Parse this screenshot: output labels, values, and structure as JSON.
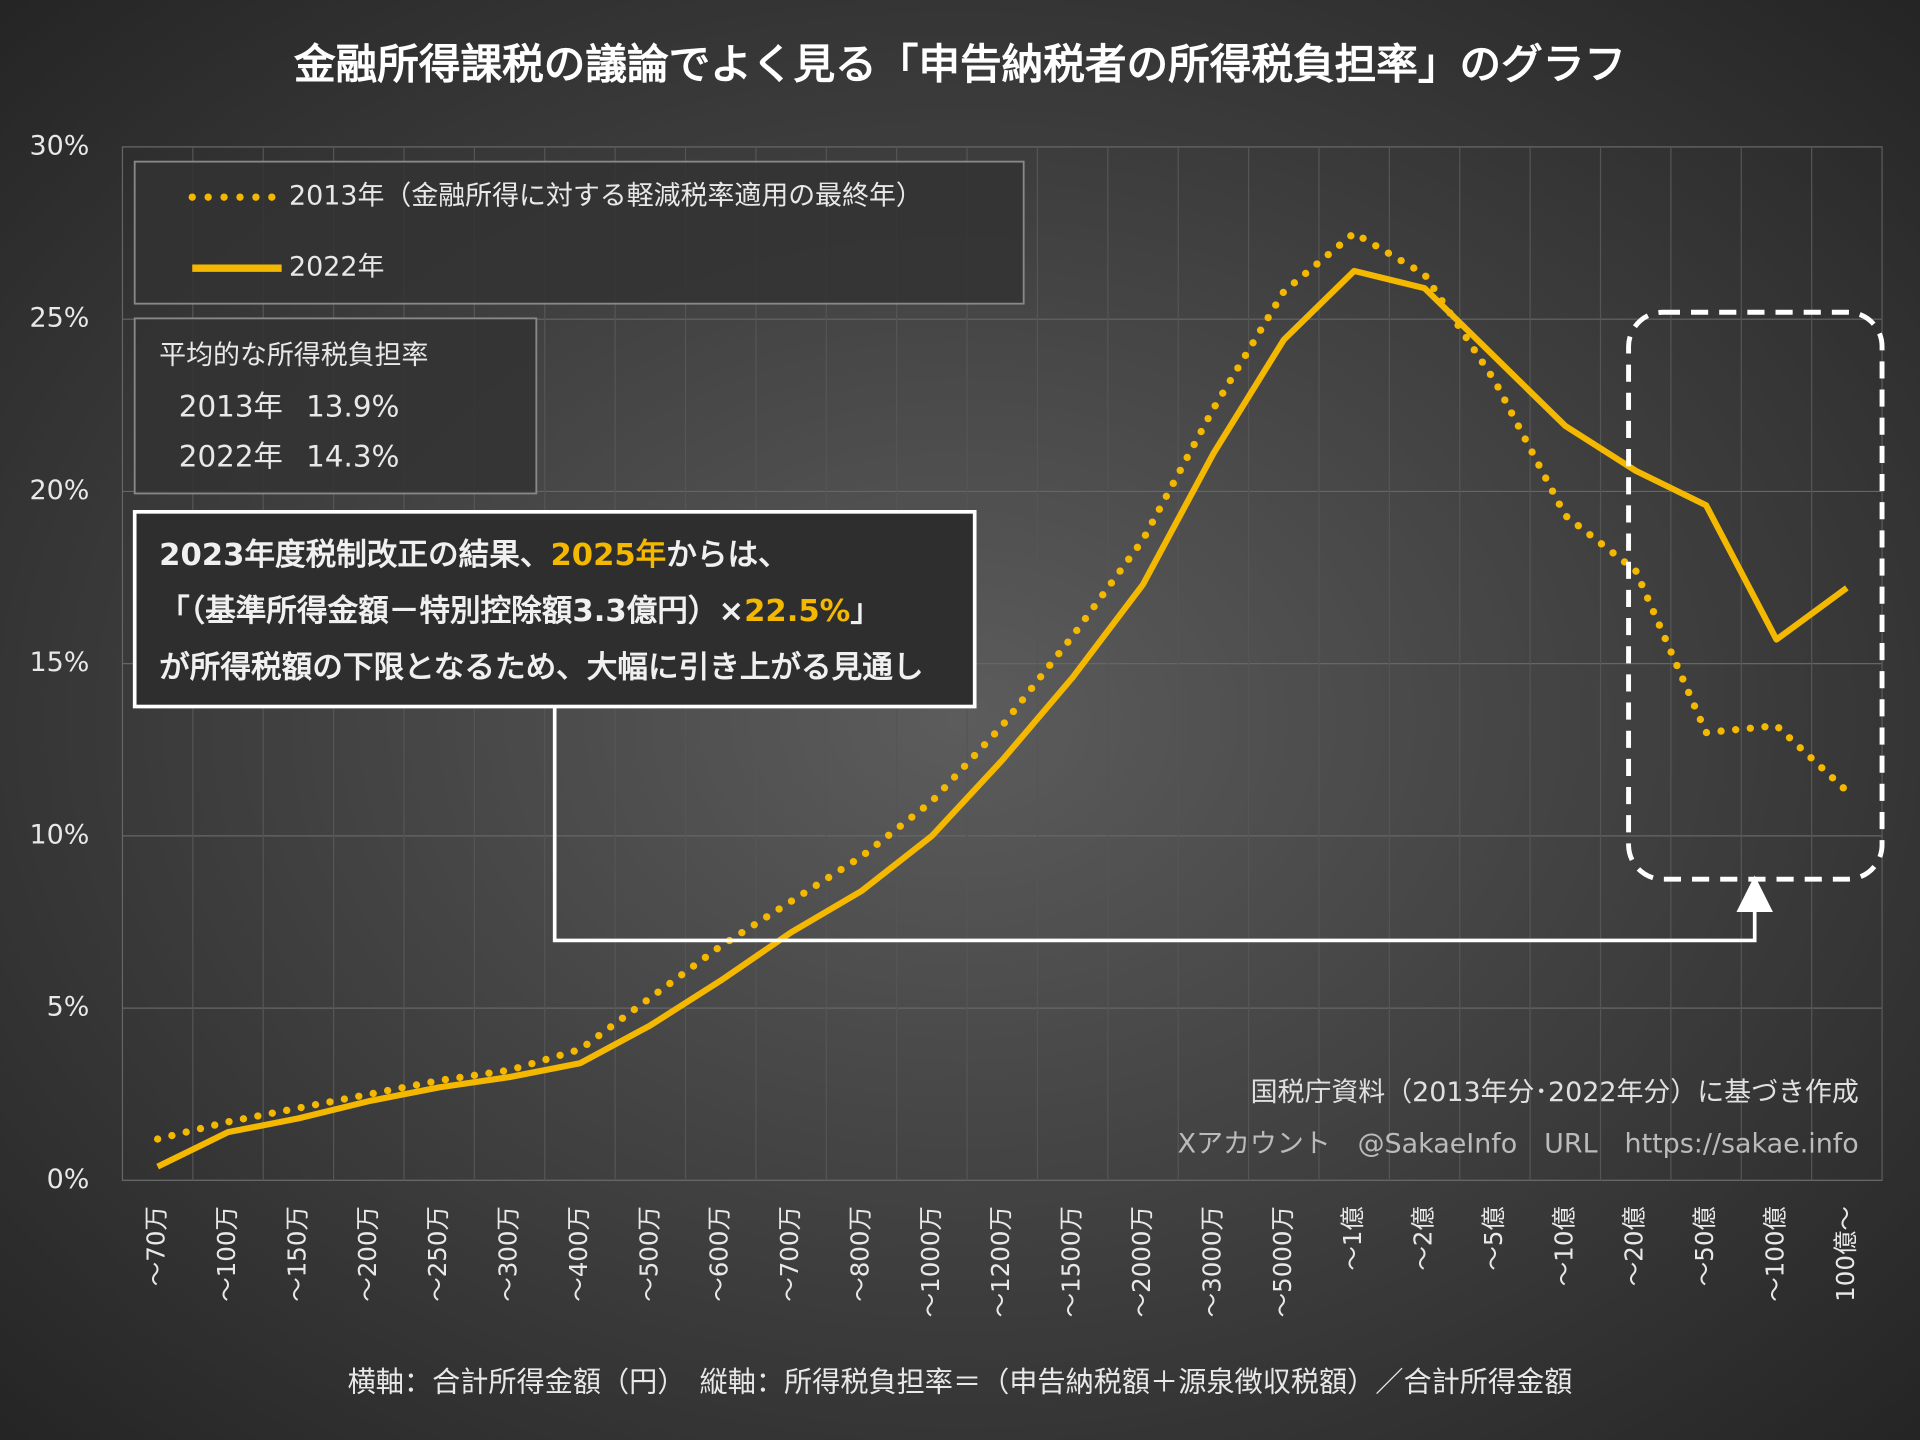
{
  "chart_data": {
    "type": "line",
    "title": "金融所得課税の議論でよく見る「申告納税者の所得税負担率」のグラフ",
    "categories": [
      "～70万",
      "～100万",
      "～150万",
      "～200万",
      "～250万",
      "～300万",
      "～400万",
      "～500万",
      "～600万",
      "～700万",
      "～800万",
      "～1000万",
      "～1200万",
      "～1500万",
      "～2000万",
      "～3000万",
      "～5000万",
      "～1億",
      "～2億",
      "～5億",
      "～10億",
      "～20億",
      "～50億",
      "～100億",
      "100億～"
    ],
    "series": [
      {
        "name": "2013年（金融所得に対する軽減税率適用の最終年）",
        "color": "#f5b800",
        "style": "dotted",
        "values": [
          1.2,
          1.7,
          2.1,
          2.5,
          2.9,
          3.2,
          3.8,
          5.3,
          6.8,
          8.1,
          9.4,
          11.0,
          13.2,
          15.8,
          18.6,
          22.4,
          25.8,
          27.5,
          26.3,
          23.2,
          19.3,
          17.7,
          13.0,
          13.2,
          11.3
        ]
      },
      {
        "name": "2022年",
        "color": "#f5b800",
        "style": "solid",
        "values": [
          0.4,
          1.4,
          1.8,
          2.3,
          2.7,
          3.0,
          3.4,
          4.5,
          5.8,
          7.2,
          8.4,
          10.0,
          12.2,
          14.6,
          17.3,
          21.1,
          24.4,
          26.4,
          25.9,
          23.9,
          21.9,
          20.6,
          19.6,
          15.7,
          17.2
        ]
      }
    ],
    "ylim": [
      0,
      30
    ],
    "yticks": [
      {
        "value": 0,
        "label": "0%"
      },
      {
        "value": 5,
        "label": "5%"
      },
      {
        "value": 10,
        "label": "10%"
      },
      {
        "value": 15,
        "label": "15%"
      },
      {
        "value": 20,
        "label": "20%"
      },
      {
        "value": 25,
        "label": "25%"
      },
      {
        "value": 30,
        "label": "30%"
      }
    ],
    "grid": true,
    "average_box": {
      "title": "平均的な所得税負担率",
      "rows": [
        [
          "2013年",
          "13.9%"
        ],
        [
          "2022年",
          "14.3%"
        ]
      ]
    },
    "annotation": [
      [
        {
          "text": "2023年度税制改正の結果、",
          "highlight": false
        },
        {
          "text": "2025年",
          "highlight": true
        },
        {
          "text": "からは、",
          "highlight": false
        }
      ],
      [
        {
          "text": "「（基準所得金額－特別控除額3.3億円）×",
          "highlight": false
        },
        {
          "text": "22.5%",
          "highlight": true
        },
        {
          "text": "」",
          "highlight": false
        }
      ],
      [
        {
          "text": "が所得税額の下限となるため、大幅に引き上がる見通し",
          "highlight": false
        }
      ]
    ],
    "source": [
      "国税庁資料（2013年分･2022年分）に基づき作成",
      "Xアカウント　@SakaeInfo　URL　https://sakae.info"
    ],
    "axis_note": "横軸：合計所得金額（円）　縦軸：所得税負担率＝（申告納税額＋源泉徴収税額）／合計所得金額"
  }
}
